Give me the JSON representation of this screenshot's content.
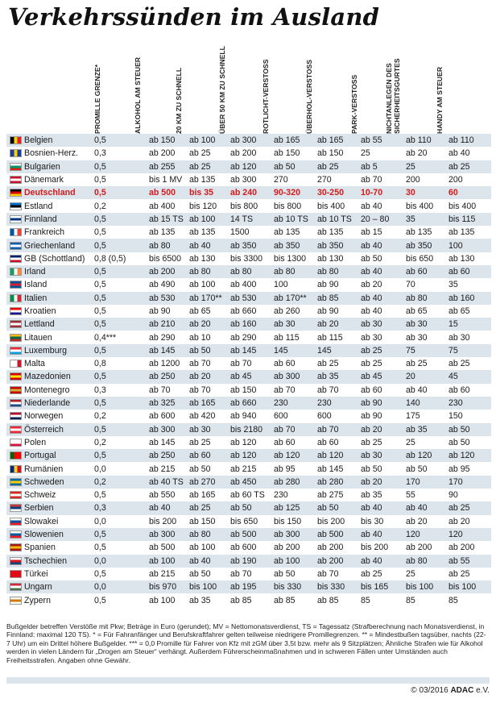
{
  "title": "Verkehrssünden im Ausland",
  "columns": [
    "Promille Grenze*",
    "Alkohol am Steuer",
    "20 km zu schnell",
    "Über 50 km zu schnell",
    "Rotlicht-verstoß",
    "Überhol-verstoß",
    "Park-verstoß",
    "Nichtanlegen des Sicherheitsgurtes",
    "Handy am Steuer"
  ],
  "rows": [
    {
      "country": "Belgien",
      "flag": [
        "#000000",
        "#f5d400",
        "#e21f26"
      ],
      "orient": "v",
      "values": [
        "0,5",
        "ab 150",
        "ab 100",
        "ab 300",
        "ab 165",
        "ab 165",
        "ab 55",
        "ab 110",
        "ab 110"
      ]
    },
    {
      "country": "Bosnien-Herz.",
      "flag": [
        "#1a3b9c",
        "#f5d400",
        "#1a3b9c"
      ],
      "orient": "v",
      "values": [
        "0,3",
        "ab 200",
        "ab 25",
        "ab 200",
        "ab 150",
        "ab 150",
        "25",
        "ab 20",
        "ab 40"
      ]
    },
    {
      "country": "Bulgarien",
      "flag": [
        "#ffffff",
        "#00966e",
        "#d62612"
      ],
      "orient": "h",
      "values": [
        "0,5",
        "ab 255",
        "ab 25",
        "ab 120",
        "ab 50",
        "ab 25",
        "ab 5",
        "25",
        "ab 25"
      ]
    },
    {
      "country": "Dänemark",
      "flag": [
        "#c8102e",
        "#ffffff",
        "#c8102e"
      ],
      "orient": "h",
      "values": [
        "0,5",
        "bis 1 MV",
        "ab 135",
        "ab 300",
        "270",
        "270",
        "ab 70",
        "200",
        "200"
      ]
    },
    {
      "country": "Deutschland",
      "flag": [
        "#000000",
        "#dd0000",
        "#ffce00"
      ],
      "orient": "h",
      "highlight": true,
      "values": [
        "0,5",
        "ab 500",
        "bis 35",
        "ab 240",
        "90-320",
        "30-250",
        "10-70",
        "30",
        "60"
      ]
    },
    {
      "country": "Estland",
      "flag": [
        "#0072ce",
        "#000000",
        "#ffffff"
      ],
      "orient": "h",
      "values": [
        "0,2",
        "ab 400",
        "bis 120",
        "bis 800",
        "bis 800",
        "bis 400",
        "ab 40",
        "bis 400",
        "bis 400"
      ]
    },
    {
      "country": "Finnland",
      "flag": [
        "#ffffff",
        "#003580",
        "#ffffff"
      ],
      "orient": "h",
      "values": [
        "0,5",
        "ab 15 TS",
        "ab 100",
        "14 TS",
        "ab 10 TS",
        "ab 10 TS",
        "20 – 80",
        "35",
        "bis 115"
      ]
    },
    {
      "country": "Frankreich",
      "flag": [
        "#0055a4",
        "#ffffff",
        "#ef4135"
      ],
      "orient": "v",
      "values": [
        "0,5",
        "ab 135",
        "ab 135",
        "1500",
        "ab 135",
        "ab 135",
        "ab 15",
        "ab 135",
        "ab 135"
      ]
    },
    {
      "country": "Griechenland",
      "flag": [
        "#0d5eaf",
        "#ffffff",
        "#0d5eaf"
      ],
      "orient": "h",
      "values": [
        "0,5",
        "ab 80",
        "ab 40",
        "ab 350",
        "ab 350",
        "ab 350",
        "ab 40",
        "ab 350",
        "100"
      ]
    },
    {
      "country": "GB (Schottland)",
      "flag": [
        "#012169",
        "#ffffff",
        "#c8102e"
      ],
      "orient": "h",
      "values": [
        "0,8 (0,5)",
        "bis 6500",
        "ab 130",
        "bis 3300",
        "bis 1300",
        "ab 130",
        "ab 50",
        "bis 650",
        "ab 130"
      ]
    },
    {
      "country": "Irland",
      "flag": [
        "#169b62",
        "#ffffff",
        "#ff883e"
      ],
      "orient": "v",
      "values": [
        "0,5",
        "ab 200",
        "ab 80",
        "ab 80",
        "ab 80",
        "ab 80",
        "ab 40",
        "ab 60",
        "ab 60"
      ]
    },
    {
      "country": "Island",
      "flag": [
        "#02529c",
        "#dc1e35",
        "#02529c"
      ],
      "orient": "h",
      "values": [
        "0,5",
        "ab 490",
        "ab 100",
        "ab 400",
        "100",
        "ab 90",
        "ab 20",
        "70",
        "35"
      ]
    },
    {
      "country": "Italien",
      "flag": [
        "#009246",
        "#ffffff",
        "#ce2b37"
      ],
      "orient": "v",
      "values": [
        "0,5",
        "ab 530",
        "ab 170**",
        "ab 530",
        "ab 170**",
        "ab 85",
        "ab 40",
        "ab 80",
        "ab 160"
      ]
    },
    {
      "country": "Kroatien",
      "flag": [
        "#ff0000",
        "#ffffff",
        "#171796"
      ],
      "orient": "h",
      "values": [
        "0,5",
        "ab 90",
        "ab 65",
        "ab 660",
        "ab 260",
        "ab 90",
        "ab 40",
        "ab 65",
        "ab 65"
      ]
    },
    {
      "country": "Lettland",
      "flag": [
        "#9e3039",
        "#ffffff",
        "#9e3039"
      ],
      "orient": "h",
      "values": [
        "0,5",
        "ab 210",
        "ab 20",
        "ab 160",
        "ab 30",
        "ab 20",
        "ab 30",
        "ab 30",
        "15"
      ]
    },
    {
      "country": "Litauen",
      "flag": [
        "#fdb913",
        "#006a44",
        "#c1272d"
      ],
      "orient": "h",
      "values": [
        "0,4***",
        "ab 290",
        "ab 10",
        "ab 290",
        "ab 115",
        "ab 115",
        "ab 30",
        "ab 30",
        "ab 30"
      ]
    },
    {
      "country": "Luxemburg",
      "flag": [
        "#ed2939",
        "#ffffff",
        "#00a1de"
      ],
      "orient": "h",
      "values": [
        "0,5",
        "ab 145",
        "ab 50",
        "ab 145",
        "145",
        "145",
        "ab 25",
        "75",
        "75"
      ]
    },
    {
      "country": "Malta",
      "flag": [
        "#ffffff",
        "#ffffff",
        "#cf142b"
      ],
      "orient": "v",
      "values": [
        "0,8",
        "ab 1200",
        "ab 70",
        "ab 70",
        "ab 60",
        "ab 25",
        "ab 25",
        "ab 25",
        "ab 25"
      ]
    },
    {
      "country": "Mazedonien",
      "flag": [
        "#d20000",
        "#ffe600",
        "#d20000"
      ],
      "orient": "h",
      "values": [
        "0,5",
        "ab 250",
        "ab 20",
        "ab 45",
        "ab 300",
        "ab 35",
        "ab 45",
        "20",
        "45"
      ]
    },
    {
      "country": "Montenegro",
      "flag": [
        "#c40308",
        "#d4af37",
        "#c40308"
      ],
      "orient": "h",
      "values": [
        "0,3",
        "ab 70",
        "ab 70",
        "ab 150",
        "ab 70",
        "ab 70",
        "ab 60",
        "ab 40",
        "ab 60"
      ]
    },
    {
      "country": "Niederlande",
      "flag": [
        "#ae1c28",
        "#ffffff",
        "#21468b"
      ],
      "orient": "h",
      "values": [
        "0,5",
        "ab 325",
        "ab 165",
        "ab 660",
        "230",
        "230",
        "ab 90",
        "140",
        "230"
      ]
    },
    {
      "country": "Norwegen",
      "flag": [
        "#ba0c2f",
        "#ffffff",
        "#00205b"
      ],
      "orient": "h",
      "values": [
        "0,2",
        "ab 600",
        "ab 420",
        "ab 940",
        "600",
        "600",
        "ab 90",
        "175",
        "150"
      ]
    },
    {
      "country": "Österreich",
      "flag": [
        "#ed2939",
        "#ffffff",
        "#ed2939"
      ],
      "orient": "h",
      "values": [
        "0,5",
        "ab 300",
        "ab 30",
        "bis 2180",
        "ab 70",
        "ab 70",
        "ab 20",
        "ab 35",
        "ab 50"
      ]
    },
    {
      "country": "Polen",
      "flag": [
        "#ffffff",
        "#ffffff",
        "#dc143c"
      ],
      "orient": "h",
      "values": [
        "0,2",
        "ab 145",
        "ab 25",
        "ab 120",
        "ab 60",
        "ab 60",
        "ab 25",
        "25",
        "ab 50"
      ]
    },
    {
      "country": "Portugal",
      "flag": [
        "#006600",
        "#ff0000",
        "#ff0000"
      ],
      "orient": "v",
      "values": [
        "0,5",
        "ab 250",
        "ab 60",
        "ab 120",
        "ab 120",
        "ab 120",
        "ab 30",
        "ab 120",
        "ab 120"
      ]
    },
    {
      "country": "Rumänien",
      "flag": [
        "#002b7f",
        "#fcd116",
        "#ce1126"
      ],
      "orient": "v",
      "values": [
        "0,0",
        "ab 215",
        "ab 50",
        "ab 215",
        "ab 95",
        "ab 145",
        "ab 50",
        "ab 50",
        "ab 95"
      ]
    },
    {
      "country": "Schweden",
      "flag": [
        "#006aa7",
        "#fecc00",
        "#006aa7"
      ],
      "orient": "h",
      "values": [
        "0,2",
        "ab 40 TS",
        "ab 270",
        "ab 450",
        "ab 280",
        "ab 280",
        "ab 20",
        "170",
        "170"
      ]
    },
    {
      "country": "Schweiz",
      "flag": [
        "#d52b1e",
        "#ffffff",
        "#d52b1e"
      ],
      "orient": "h",
      "values": [
        "0,5",
        "ab 550",
        "ab 165",
        "ab 60 TS",
        "230",
        "ab 275",
        "ab 35",
        "55",
        "90"
      ]
    },
    {
      "country": "Serbien",
      "flag": [
        "#c6363c",
        "#0c4076",
        "#ffffff"
      ],
      "orient": "h",
      "values": [
        "0,3",
        "ab 40",
        "ab 25",
        "ab 50",
        "ab 125",
        "ab 50",
        "ab 40",
        "ab 40",
        "ab 25"
      ]
    },
    {
      "country": "Slowakei",
      "flag": [
        "#ffffff",
        "#0b4ea2",
        "#ee1c25"
      ],
      "orient": "h",
      "values": [
        "0,0",
        "bis 200",
        "ab 150",
        "bis 650",
        "bis 150",
        "bis 200",
        "bis 30",
        "ab 20",
        "ab 20"
      ]
    },
    {
      "country": "Slowenien",
      "flag": [
        "#ffffff",
        "#005da4",
        "#ed1c24"
      ],
      "orient": "h",
      "values": [
        "0,5",
        "ab 300",
        "ab 80",
        "ab 500",
        "ab 300",
        "ab 500",
        "ab 40",
        "120",
        "120"
      ]
    },
    {
      "country": "Spanien",
      "flag": [
        "#aa151b",
        "#f1bf00",
        "#aa151b"
      ],
      "orient": "h",
      "values": [
        "0,5",
        "ab 500",
        "ab 100",
        "ab 600",
        "ab 200",
        "ab 200",
        "bis 200",
        "ab 200",
        "ab 200"
      ]
    },
    {
      "country": "Tschechien",
      "flag": [
        "#ffffff",
        "#d7141a",
        "#11457e"
      ],
      "orient": "h",
      "values": [
        "0,0",
        "ab 100",
        "ab 40",
        "ab 190",
        "ab 100",
        "ab 200",
        "ab 40",
        "ab 80",
        "ab 55"
      ]
    },
    {
      "country": "Türkei",
      "flag": [
        "#e30a17",
        "#e30a17",
        "#e30a17"
      ],
      "orient": "h",
      "values": [
        "0,5",
        "ab 215",
        "ab 50",
        "ab 70",
        "ab 50",
        "ab 70",
        "ab 25",
        "25",
        "ab 25"
      ]
    },
    {
      "country": "Ungarn",
      "flag": [
        "#ce2939",
        "#ffffff",
        "#477050"
      ],
      "orient": "h",
      "values": [
        "0,0",
        "bis 970",
        "bis 100",
        "ab 195",
        "bis 330",
        "bis 330",
        "bis 165",
        "bis 100",
        "bis 100"
      ]
    },
    {
      "country": "Zypern",
      "flag": [
        "#ffffff",
        "#d57800",
        "#ffffff"
      ],
      "orient": "h",
      "values": [
        "0,5",
        "ab 100",
        "ab 35",
        "ab 85",
        "ab 85",
        "ab 85",
        "85",
        "85",
        "85"
      ]
    }
  ],
  "footnote": "Bußgelder betreffen Verstöße mit Pkw; Beträge in Euro (gerundet); MV = Nettomonatsverdienst, TS = Tagessatz (Strafberechnung nach Monatsverdienst, in Finnland: maximal 120 TS). * = Für Fahranfänger und Berufskraftfahrer gelten teilweise niedrigere Promillegrenzen. ** = Mindestbußen tagsüber, nachts (22-7 Uhr) um ein Drittel höhere Bußgelder. *** = 0,0 Promille für Fahrer von Kfz mit zGM über 3,5t bzw. mehr als 9 Sitzplätzen; Ähnliche Strafen wie für Alkohol werden in vielen Ländern für „Drogen am Steuer“ verhängt. Außerdem Führerscheinmaßnahmen und in schweren Fällen unter Umständen auch Freiheitsstrafen. Angaben ohne Gewähr.",
  "credit": {
    "copyright": "© 03/2016",
    "brand": "ADAC",
    "suffix": "e.V."
  }
}
